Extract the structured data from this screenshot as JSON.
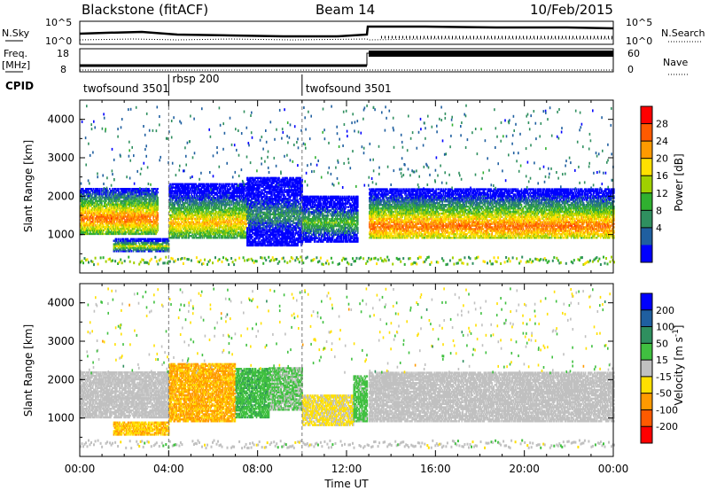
{
  "header": {
    "radar": "Blackstone (fitACF)",
    "beam": "Beam 14",
    "date": "10/Feb/2015"
  },
  "aux_panels": {
    "noise": {
      "left_label": "N.Sky",
      "right_label": "N.Search",
      "left_ticks": [
        "10^5",
        "10^0"
      ],
      "right_ticks": [
        "10^5",
        "10^0"
      ]
    },
    "freq": {
      "left_label_1": "Freq.",
      "left_label_2": "[MHz]",
      "left_ticks": [
        "18",
        "8"
      ],
      "right_label": "Nave",
      "right_ticks": [
        "60",
        "0"
      ]
    },
    "cpid": {
      "label": "CPID",
      "segments": [
        {
          "name": "twofsound 3501",
          "start_hour": 0,
          "end_hour": 4
        },
        {
          "name": "rbsp 200",
          "start_hour": 4,
          "end_hour": 10
        },
        {
          "name": "twofsound 3501",
          "start_hour": 10,
          "end_hour": 24
        }
      ]
    }
  },
  "chart_data": [
    {
      "type": "heatmap",
      "title": "",
      "xlabel": "",
      "ylabel": "Slant Range [km]",
      "xlim": [
        0,
        24
      ],
      "ylim": [
        0,
        4500
      ],
      "yticks": [
        "1000",
        "2000",
        "3000",
        "4000"
      ],
      "colorbar": {
        "label": "Power [dB]",
        "ticks": [
          "28",
          "24",
          "20",
          "16",
          "12",
          "8",
          "4"
        ],
        "colors": [
          "#ff0000",
          "#ff5a00",
          "#ff9a00",
          "#ffe000",
          "#a0d000",
          "#30b030",
          "#2f8f5f",
          "#1f5fa0",
          "#0000ff"
        ]
      },
      "echo_bands": [
        {
          "t": [
            0.0,
            3.5
          ],
          "range": [
            1000,
            2200
          ],
          "peak_range": 1400,
          "value": 26
        },
        {
          "t": [
            1.5,
            4.0
          ],
          "range": [
            550,
            900
          ],
          "peak_range": 680,
          "value": 18
        },
        {
          "t": [
            4.0,
            7.5
          ],
          "range": [
            900,
            2300
          ],
          "peak_range": 1300,
          "value": 22
        },
        {
          "t": [
            7.5,
            10.0
          ],
          "range": [
            700,
            2500
          ],
          "peak_range": 1500,
          "value": 10
        },
        {
          "t": [
            10.0,
            12.5
          ],
          "range": [
            800,
            2000
          ],
          "peak_range": 1300,
          "value": 14
        },
        {
          "t": [
            13.0,
            24.0
          ],
          "range": [
            900,
            2200
          ],
          "peak_range": 1200,
          "value": 26
        }
      ]
    },
    {
      "type": "heatmap",
      "title": "",
      "xlabel": "Time UT",
      "ylabel": "Slant Range [km]",
      "xlim": [
        0,
        24
      ],
      "ylim": [
        0,
        4500
      ],
      "xticks": [
        "00:00",
        "04:00",
        "08:00",
        "12:00",
        "16:00",
        "20:00",
        "00:00"
      ],
      "yticks": [
        "1000",
        "2000",
        "3000",
        "4000"
      ],
      "colorbar": {
        "label": "Velocity [m s^-1]",
        "unit_base": "Velocity [m s",
        "unit_exp": "-1",
        "unit_close": "]",
        "ticks": [
          "200",
          "100",
          "50",
          "15",
          "-15",
          "-50",
          "-100",
          "-200"
        ],
        "colors": [
          "#0000ff",
          "#1f5fa0",
          "#2f8f5f",
          "#40c040",
          "#c0c0c0",
          "#ffe000",
          "#ff9a00",
          "#ff5a00",
          "#ff0000"
        ]
      },
      "echo_bands": [
        {
          "t": [
            0.0,
            4.0
          ],
          "range": [
            1000,
            2200
          ],
          "value": 0
        },
        {
          "t": [
            1.5,
            4.0
          ],
          "range": [
            550,
            900
          ],
          "value": -70
        },
        {
          "t": [
            4.0,
            7.0
          ],
          "range": [
            900,
            2400
          ],
          "value": -80
        },
        {
          "t": [
            7.0,
            8.5
          ],
          "range": [
            1000,
            2300
          ],
          "value": 60
        },
        {
          "t": [
            8.5,
            10.0
          ],
          "range": [
            1200,
            2300
          ],
          "value": 30
        },
        {
          "t": [
            10.0,
            12.3
          ],
          "range": [
            800,
            1600
          ],
          "value": -30
        },
        {
          "t": [
            12.3,
            12.9
          ],
          "range": [
            900,
            2100
          ],
          "value": 40
        },
        {
          "t": [
            13.0,
            24.0
          ],
          "range": [
            900,
            2200
          ],
          "value": 0
        }
      ]
    }
  ]
}
